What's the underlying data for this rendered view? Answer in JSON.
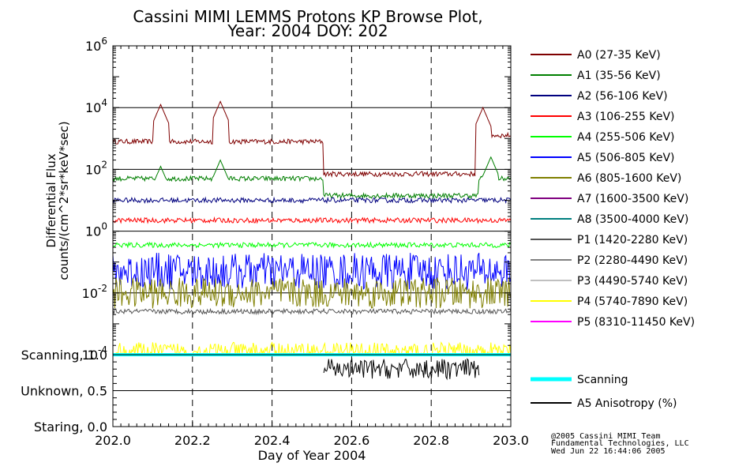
{
  "chart_data": {
    "type": "line",
    "title": "Cassini MIMI LEMMS Protons KP Browse Plot,",
    "subtitle": "Year: 2004 DOY: 202",
    "xlabel": "Day of Year 2004",
    "ylabel_line1": "Differential Flux",
    "ylabel_line2": "counts/(cm^2*sr*keV*sec)",
    "x_range": [
      202.0,
      203.0
    ],
    "x_ticks": [
      "202.0",
      "202.2",
      "202.4",
      "202.6",
      "202.8",
      "203.0"
    ],
    "y_scale": "log",
    "y_range_log10": [
      -4,
      6
    ],
    "y_tick_labels": [
      {
        "base": "10",
        "exp": "6"
      },
      {
        "base": "10",
        "exp": "4"
      },
      {
        "base": "10",
        "exp": "2"
      },
      {
        "base": "10",
        "exp": "0"
      },
      {
        "base": "10",
        "exp": "-2"
      },
      {
        "base": "10",
        "exp": "-4"
      }
    ],
    "lower_panel_labels": [
      "Scanning, 1.0",
      "Unknown, 0.5",
      "Staring, 0.0"
    ],
    "series": [
      {
        "name": "A0 (27-35 KeV)",
        "color": "#7f0000",
        "baseline_log10": 2.9,
        "segments": [
          [
            202.0,
            202.53,
            2.9
          ],
          [
            202.53,
            202.92,
            1.85
          ],
          [
            202.92,
            203.0,
            3.1
          ]
        ],
        "peaks": [
          [
            202.12,
            4.1
          ],
          [
            202.27,
            4.2
          ],
          [
            202.93,
            4.0
          ]
        ]
      },
      {
        "name": "A1 (35-56 KeV)",
        "color": "#007f00",
        "baseline_log10": 1.7,
        "segments": [
          [
            202.0,
            202.53,
            1.7
          ],
          [
            202.53,
            202.92,
            1.15
          ],
          [
            202.92,
            203.0,
            1.7
          ]
        ],
        "peaks": [
          [
            202.12,
            2.1
          ],
          [
            202.27,
            2.3
          ],
          [
            202.95,
            2.4
          ]
        ]
      },
      {
        "name": "A2 (56-106 KeV)",
        "color": "#00007f",
        "baseline_log10": 1.0,
        "segments": [
          [
            202.0,
            203.0,
            1.0
          ]
        ],
        "peaks": []
      },
      {
        "name": "A3 (106-255 KeV)",
        "color": "#ff0000",
        "baseline_log10": 0.35,
        "segments": [
          [
            202.0,
            203.0,
            0.35
          ]
        ],
        "peaks": []
      },
      {
        "name": "A4 (255-506 KeV)",
        "color": "#00ff00",
        "baseline_log10": -0.45,
        "segments": [
          [
            202.0,
            203.0,
            -0.45
          ]
        ],
        "peaks": []
      },
      {
        "name": "A5 (506-805 KeV)",
        "color": "#0000ff",
        "baseline_log10": -1.3,
        "segments": [
          [
            202.0,
            203.0,
            -1.3
          ]
        ],
        "peaks": []
      },
      {
        "name": "A6 (805-1600 KeV)",
        "color": "#7f7f00",
        "baseline_log10": -2.0,
        "segments": [
          [
            202.0,
            203.0,
            -2.0
          ]
        ],
        "peaks": []
      },
      {
        "name": "A7 (1600-3500 KeV)",
        "color": "#7f007f",
        "baseline_log10": null,
        "segments": [],
        "peaks": []
      },
      {
        "name": "A8 (3500-4000 KeV)",
        "color": "#007f7f",
        "baseline_log10": null,
        "segments": [],
        "peaks": []
      },
      {
        "name": "P1 (1420-2280 KeV)",
        "color": "#555555",
        "baseline_log10": -2.6,
        "segments": [
          [
            202.0,
            203.0,
            -2.6
          ]
        ],
        "peaks": []
      },
      {
        "name": "P2 (2280-4490 KeV)",
        "color": "#808080",
        "baseline_log10": null,
        "segments": [],
        "peaks": []
      },
      {
        "name": "P3 (4490-5740 KeV)",
        "color": "#c0c0c0",
        "baseline_log10": null,
        "segments": [],
        "peaks": []
      },
      {
        "name": "P4 (5740-7890 KeV)",
        "color": "#ffff00",
        "baseline_log10": -3.9,
        "segments": [
          [
            202.0,
            203.0,
            -3.9
          ]
        ],
        "peaks": []
      },
      {
        "name": "P5 (8310-11450 KeV)",
        "color": "#ff00ff",
        "baseline_log10": null,
        "segments": [],
        "peaks": []
      }
    ],
    "lower_series": [
      {
        "name": "Scanning",
        "color": "#00ffff",
        "value": 1.0
      },
      {
        "name": "A5 Anisotropy (%)",
        "color": "#000000",
        "segments": [
          [
            202.53,
            202.92,
            0.8
          ]
        ]
      }
    ]
  },
  "credit": {
    "line1": "@2005 Cassini MIMI Team",
    "line2": "Fundamental Technologies, LLC",
    "line3": "Wed Jun 22 16:44:06 2005"
  }
}
